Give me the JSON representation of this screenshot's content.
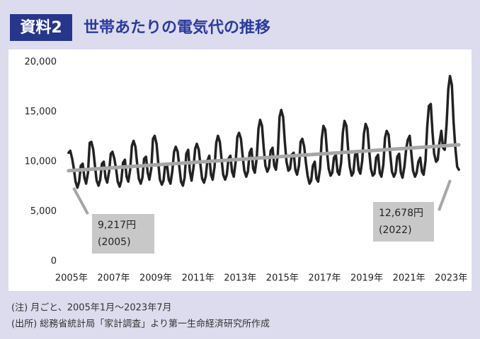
{
  "chart_data": {
    "type": "line",
    "label": "資料2",
    "title": "世帯あたりの電気代の推移",
    "notes": [
      "(注) 月ごと、2005年1月～2023年7月",
      "(出所) 総務省統計局「家計調査」より第一生命経済研究所作成"
    ],
    "xlim": [
      2004.4,
      2024.1
    ],
    "xticks": [
      {
        "value": 2005,
        "label": "2005年"
      },
      {
        "value": 2007,
        "label": "2007年"
      },
      {
        "value": 2009,
        "label": "2009年"
      },
      {
        "value": 2011,
        "label": "2011年"
      },
      {
        "value": 2013,
        "label": "2013年"
      },
      {
        "value": 2015,
        "label": "2015年"
      },
      {
        "value": 2017,
        "label": "2017年"
      },
      {
        "value": 2019,
        "label": "2019年"
      },
      {
        "value": 2021,
        "label": "2021年"
      },
      {
        "value": 2023,
        "label": "2023年"
      }
    ],
    "ylim": [
      0,
      20000
    ],
    "yticks": [
      0,
      {
        "value": 5000,
        "label": "5,000"
      },
      {
        "value": 10000,
        "label": "10,000"
      },
      {
        "value": 15000,
        "label": "15,000"
      },
      {
        "value": 20000,
        "label": "20,000"
      }
    ],
    "grid": false,
    "series": [
      {
        "color": "#222222",
        "x": [
          2005,
          2005.08,
          2005.17,
          2005.25,
          2005.33,
          2005.42,
          2005.5,
          2005.58,
          2005.67,
          2005.75,
          2005.83,
          2005.92,
          2006,
          2006.08,
          2006.17,
          2006.25,
          2006.33,
          2006.42,
          2006.5,
          2006.58,
          2006.67,
          2006.75,
          2006.83,
          2006.92,
          2007,
          2007.08,
          2007.17,
          2007.25,
          2007.33,
          2007.42,
          2007.5,
          2007.58,
          2007.67,
          2007.75,
          2007.83,
          2007.92,
          2008,
          2008.08,
          2008.17,
          2008.25,
          2008.33,
          2008.42,
          2008.5,
          2008.58,
          2008.67,
          2008.75,
          2008.83,
          2008.92,
          2009,
          2009.08,
          2009.17,
          2009.25,
          2009.33,
          2009.42,
          2009.5,
          2009.58,
          2009.67,
          2009.75,
          2009.83,
          2009.92,
          2010,
          2010.08,
          2010.17,
          2010.25,
          2010.33,
          2010.42,
          2010.5,
          2010.58,
          2010.67,
          2010.75,
          2010.83,
          2010.92,
          2011,
          2011.08,
          2011.17,
          2011.25,
          2011.33,
          2011.42,
          2011.5,
          2011.58,
          2011.67,
          2011.75,
          2011.83,
          2011.92,
          2012,
          2012.08,
          2012.17,
          2012.25,
          2012.33,
          2012.42,
          2012.5,
          2012.58,
          2012.67,
          2012.75,
          2012.83,
          2012.92,
          2013,
          2013.08,
          2013.17,
          2013.25,
          2013.33,
          2013.42,
          2013.5,
          2013.58,
          2013.67,
          2013.75,
          2013.83,
          2013.92,
          2014,
          2014.08,
          2014.17,
          2014.25,
          2014.33,
          2014.42,
          2014.5,
          2014.58,
          2014.67,
          2014.75,
          2014.83,
          2014.92,
          2015,
          2015.08,
          2015.17,
          2015.25,
          2015.33,
          2015.42,
          2015.5,
          2015.58,
          2015.67,
          2015.75,
          2015.83,
          2015.92,
          2016,
          2016.08,
          2016.17,
          2016.25,
          2016.33,
          2016.42,
          2016.5,
          2016.58,
          2016.67,
          2016.75,
          2016.83,
          2016.92,
          2017,
          2017.08,
          2017.17,
          2017.25,
          2017.33,
          2017.42,
          2017.5,
          2017.58,
          2017.67,
          2017.75,
          2017.83,
          2017.92,
          2018,
          2018.08,
          2018.17,
          2018.25,
          2018.33,
          2018.42,
          2018.5,
          2018.58,
          2018.67,
          2018.75,
          2018.83,
          2018.92,
          2019,
          2019.08,
          2019.17,
          2019.25,
          2019.33,
          2019.42,
          2019.5,
          2019.58,
          2019.67,
          2019.75,
          2019.83,
          2019.92,
          2020,
          2020.08,
          2020.17,
          2020.25,
          2020.33,
          2020.42,
          2020.5,
          2020.58,
          2020.67,
          2020.75,
          2020.83,
          2020.92,
          2021,
          2021.08,
          2021.17,
          2021.25,
          2021.33,
          2021.42,
          2021.5,
          2021.58,
          2021.67,
          2021.75,
          2021.83,
          2021.92,
          2022,
          2022.08,
          2022.17,
          2022.25,
          2022.33,
          2022.42,
          2022.5,
          2022.58,
          2022.67,
          2022.75,
          2022.83,
          2022.92,
          2023,
          2023.08,
          2023.17,
          2023.25,
          2023.33,
          2023.42,
          2023.5
        ],
        "values": [
          10900,
          11100,
          10300,
          9300,
          8000,
          7400,
          8000,
          9600,
          9800,
          8400,
          7800,
          8900,
          11900,
          12000,
          11200,
          9600,
          8100,
          7600,
          8200,
          9800,
          10000,
          8400,
          7900,
          9000,
          10800,
          11000,
          10300,
          9300,
          8000,
          7500,
          8100,
          9900,
          10200,
          8500,
          8000,
          9200,
          11600,
          12100,
          11500,
          9800,
          8300,
          7800,
          8400,
          10300,
          10500,
          8900,
          8200,
          9300,
          12300,
          12600,
          11800,
          9900,
          8200,
          7700,
          8100,
          9700,
          9600,
          8200,
          7800,
          9100,
          11000,
          11500,
          11000,
          9500,
          8000,
          7600,
          8400,
          10800,
          11200,
          9000,
          8100,
          9400,
          11300,
          11800,
          11200,
          9700,
          8300,
          7900,
          8500,
          10100,
          10600,
          8700,
          8200,
          9500,
          11900,
          12600,
          12000,
          10300,
          8700,
          8200,
          8700,
          10300,
          10600,
          9000,
          8500,
          10000,
          12500,
          12900,
          12300,
          10600,
          9100,
          8500,
          9000,
          10900,
          11300,
          9300,
          8900,
          10400,
          13300,
          14200,
          13600,
          11400,
          9600,
          9000,
          9400,
          11100,
          11400,
          9600,
          9200,
          10800,
          14500,
          15200,
          14500,
          12000,
          10000,
          9100,
          9300,
          10700,
          10900,
          9200,
          8700,
          9600,
          12000,
          12300,
          11500,
          9900,
          8600,
          7800,
          8100,
          9600,
          10000,
          8300,
          8000,
          9300,
          12300,
          13600,
          13200,
          11000,
          9300,
          8600,
          8900,
          10400,
          10700,
          9000,
          8700,
          9900,
          12900,
          14100,
          13600,
          11300,
          9500,
          8600,
          8900,
          10700,
          11000,
          9200,
          8800,
          10100,
          12800,
          13800,
          13300,
          11100,
          9300,
          8600,
          8800,
          10400,
          10700,
          8900,
          8500,
          9700,
          12400,
          13100,
          12700,
          10700,
          9000,
          8500,
          8900,
          10500,
          10800,
          8900,
          8400,
          9500,
          11200,
          12200,
          12600,
          10800,
          9100,
          8500,
          8900,
          10000,
          10400,
          9000,
          8700,
          10100,
          13500,
          15600,
          15800,
          13000,
          10800,
          10000,
          10200,
          11900,
          13100,
          11400,
          11200,
          13800,
          17300,
          18600,
          17700,
          14000,
          11500,
          9500,
          9200
        ]
      },
      {
        "color": "#a6a6a6",
        "x": [
          2005,
          2023.5
        ],
        "values": [
          9100,
          11700
        ]
      }
    ],
    "annotations": [
      {
        "text": "9,217円",
        "sub": "(2005)"
      },
      {
        "text": "12,678円",
        "sub": "(2022)"
      }
    ]
  }
}
